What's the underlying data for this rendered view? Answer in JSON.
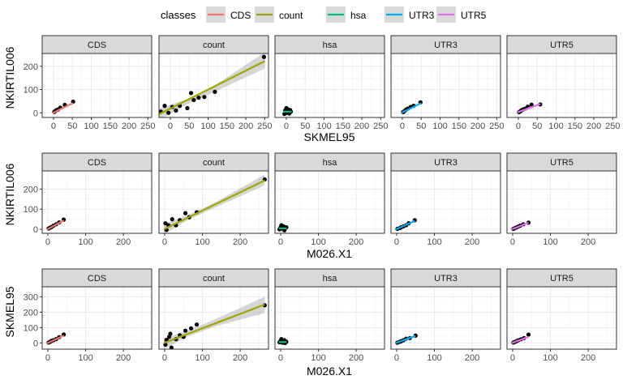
{
  "legend": {
    "title": "classes",
    "items": [
      {
        "label": "CDS",
        "color": "#F8766D"
      },
      {
        "label": "count",
        "color": "#A3A500"
      },
      {
        "label": "hsa",
        "color": "#00BF7D"
      },
      {
        "label": "UTR3",
        "color": "#00B0F6"
      },
      {
        "label": "UTR5",
        "color": "#E76BF3"
      }
    ]
  },
  "chart_data": [
    {
      "type": "scatter",
      "xlabel": "SKMEL95",
      "ylabel": "NKIRTIL006",
      "xlim": [
        -30,
        260
      ],
      "ylim": [
        -20,
        255
      ],
      "xticks": [
        0,
        50,
        100,
        150,
        200,
        250
      ],
      "yticks": [
        0,
        100,
        200
      ],
      "grid": true,
      "panels": [
        {
          "facet": "CDS",
          "series": "CDS",
          "points": [
            [
              2,
              4
            ],
            [
              5,
              8
            ],
            [
              8,
              12
            ],
            [
              12,
              14
            ],
            [
              18,
              22
            ],
            [
              30,
              34
            ],
            [
              52,
              48
            ]
          ],
          "fit": [
            [
              -2,
              -1
            ],
            [
              52,
              42
            ]
          ]
        },
        {
          "facet": "count",
          "series": "count",
          "points": [
            [
              -25,
              5
            ],
            [
              -15,
              30
            ],
            [
              -5,
              0
            ],
            [
              5,
              25
            ],
            [
              15,
              10
            ],
            [
              25,
              30
            ],
            [
              45,
              20
            ],
            [
              55,
              85
            ],
            [
              62,
              55
            ],
            [
              75,
              65
            ],
            [
              90,
              68
            ],
            [
              118,
              90
            ],
            [
              248,
              240
            ]
          ],
          "fit": [
            [
              -30,
              -6
            ],
            [
              250,
              222
            ]
          ],
          "band": [
            [
              -30,
              -30,
              18
            ],
            [
              50,
              42,
              62
            ],
            [
              110,
              85,
              110
            ],
            [
              250,
              190,
              260
            ]
          ]
        },
        {
          "facet": "hsa",
          "series": "hsa",
          "points": [
            [
              -5,
              -5
            ],
            [
              -3,
              10
            ],
            [
              0,
              20
            ],
            [
              2,
              0
            ],
            [
              4,
              15
            ],
            [
              6,
              5
            ],
            [
              8,
              -3
            ],
            [
              10,
              12
            ],
            [
              12,
              5
            ]
          ],
          "fit": [
            [
              -8,
              5
            ],
            [
              14,
              5
            ]
          ]
        },
        {
          "facet": "UTR3",
          "series": "UTR3",
          "points": [
            [
              2,
              3
            ],
            [
              6,
              8
            ],
            [
              10,
              14
            ],
            [
              15,
              18
            ],
            [
              22,
              25
            ],
            [
              30,
              30
            ],
            [
              48,
              45
            ]
          ],
          "fit": [
            [
              -2,
              0
            ],
            [
              50,
              42
            ]
          ]
        },
        {
          "facet": "UTR5",
          "series": "UTR5",
          "points": [
            [
              2,
              3
            ],
            [
              5,
              6
            ],
            [
              8,
              10
            ],
            [
              12,
              14
            ],
            [
              18,
              18
            ],
            [
              25,
              26
            ],
            [
              35,
              35
            ],
            [
              58,
              36
            ]
          ],
          "fit": [
            [
              -2,
              2
            ],
            [
              58,
              38
            ]
          ]
        }
      ]
    },
    {
      "type": "scatter",
      "xlabel": "M026.X1",
      "ylabel": "NKIRTIL006",
      "xlim": [
        -15,
        275
      ],
      "ylim": [
        -20,
        290
      ],
      "xticks": [
        0,
        100,
        200
      ],
      "yticks": [
        0,
        100,
        200
      ],
      "grid": true,
      "panels": [
        {
          "facet": "CDS",
          "series": "CDS",
          "points": [
            [
              2,
              4
            ],
            [
              6,
              8
            ],
            [
              10,
              12
            ],
            [
              15,
              18
            ],
            [
              22,
              25
            ],
            [
              30,
              34
            ],
            [
              42,
              48
            ]
          ],
          "fit": [
            [
              -2,
              -1
            ],
            [
              42,
              44
            ]
          ]
        },
        {
          "facet": "count",
          "series": "count",
          "points": [
            [
              2,
              30
            ],
            [
              5,
              -3
            ],
            [
              10,
              20
            ],
            [
              20,
              50
            ],
            [
              30,
              20
            ],
            [
              40,
              45
            ],
            [
              55,
              80
            ],
            [
              65,
              60
            ],
            [
              85,
              85
            ],
            [
              265,
              248
            ]
          ],
          "fit": [
            [
              -2,
              0
            ],
            [
              265,
              243
            ]
          ],
          "band": [
            [
              -2,
              -25,
              25
            ],
            [
              60,
              45,
              70
            ],
            [
              130,
              105,
              130
            ],
            [
              265,
              218,
              272
            ]
          ]
        },
        {
          "facet": "hsa",
          "series": "hsa",
          "points": [
            [
              -3,
              0
            ],
            [
              0,
              10
            ],
            [
              2,
              20
            ],
            [
              5,
              3
            ],
            [
              8,
              14
            ],
            [
              10,
              -5
            ],
            [
              12,
              6
            ],
            [
              15,
              10
            ]
          ],
          "fit": [
            [
              -5,
              5
            ],
            [
              16,
              5
            ]
          ]
        },
        {
          "facet": "UTR3",
          "series": "UTR3",
          "points": [
            [
              2,
              2
            ],
            [
              8,
              6
            ],
            [
              12,
              10
            ],
            [
              18,
              15
            ],
            [
              25,
              20
            ],
            [
              32,
              30
            ],
            [
              48,
              45
            ]
          ],
          "fit": [
            [
              -2,
              -1
            ],
            [
              48,
              42
            ]
          ]
        },
        {
          "facet": "UTR5",
          "series": "UTR5",
          "points": [
            [
              2,
              2
            ],
            [
              6,
              6
            ],
            [
              10,
              9
            ],
            [
              15,
              14
            ],
            [
              20,
              18
            ],
            [
              28,
              25
            ],
            [
              42,
              33
            ]
          ],
          "fit": [
            [
              -2,
              0
            ],
            [
              42,
              33
            ]
          ]
        }
      ]
    },
    {
      "type": "scatter",
      "xlabel": "M026.X1",
      "ylabel": "SKMEL95",
      "xlim": [
        -15,
        275
      ],
      "ylim": [
        -40,
        365
      ],
      "xticks": [
        0,
        100,
        200
      ],
      "yticks": [
        0,
        100,
        200,
        300
      ],
      "grid": true,
      "panels": [
        {
          "facet": "CDS",
          "series": "CDS",
          "points": [
            [
              2,
              3
            ],
            [
              6,
              8
            ],
            [
              10,
              14
            ],
            [
              15,
              18
            ],
            [
              22,
              25
            ],
            [
              30,
              38
            ],
            [
              42,
              55
            ]
          ],
          "fit": [
            [
              -2,
              -2
            ],
            [
              42,
              48
            ]
          ]
        },
        {
          "facet": "count",
          "series": "count",
          "points": [
            [
              2,
              -10
            ],
            [
              5,
              20
            ],
            [
              12,
              40
            ],
            [
              15,
              60
            ],
            [
              18,
              -30
            ],
            [
              30,
              25
            ],
            [
              40,
              50
            ],
            [
              50,
              40
            ],
            [
              55,
              80
            ],
            [
              70,
              95
            ],
            [
              85,
              120
            ],
            [
              265,
              245
            ]
          ],
          "fit": [
            [
              -2,
              0
            ],
            [
              265,
              250
            ]
          ],
          "band": [
            [
              -2,
              -40,
              30
            ],
            [
              60,
              40,
              80
            ],
            [
              130,
              105,
              150
            ],
            [
              265,
              195,
              300
            ]
          ]
        },
        {
          "facet": "hsa",
          "series": "hsa",
          "points": [
            [
              -3,
              5
            ],
            [
              0,
              15
            ],
            [
              2,
              25
            ],
            [
              5,
              2
            ],
            [
              8,
              12
            ],
            [
              10,
              18
            ],
            [
              12,
              0
            ],
            [
              15,
              8
            ]
          ],
          "fit": [
            [
              -5,
              6
            ],
            [
              16,
              6
            ]
          ]
        },
        {
          "facet": "UTR3",
          "series": "UTR3",
          "points": [
            [
              2,
              2
            ],
            [
              8,
              8
            ],
            [
              12,
              12
            ],
            [
              18,
              18
            ],
            [
              25,
              28
            ],
            [
              35,
              32
            ],
            [
              50,
              48
            ]
          ],
          "fit": [
            [
              -2,
              0
            ],
            [
              50,
              46
            ]
          ]
        },
        {
          "facet": "UTR5",
          "series": "UTR5",
          "points": [
            [
              2,
              3
            ],
            [
              6,
              7
            ],
            [
              10,
              12
            ],
            [
              15,
              18
            ],
            [
              22,
              24
            ],
            [
              30,
              32
            ],
            [
              42,
              55
            ]
          ],
          "fit": [
            [
              -2,
              0
            ],
            [
              42,
              40
            ]
          ]
        }
      ]
    }
  ]
}
